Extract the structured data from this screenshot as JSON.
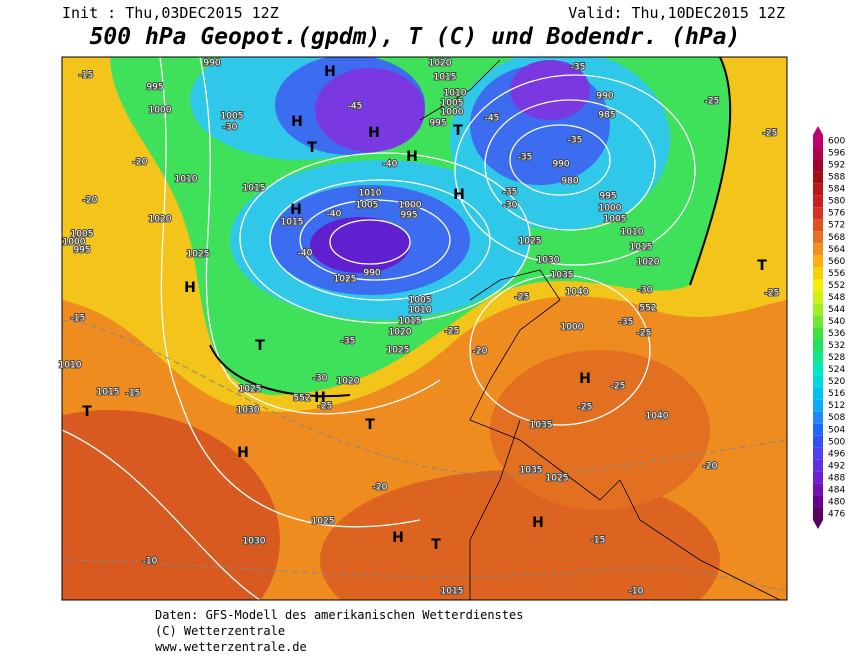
{
  "header": {
    "init": "Init : Thu,03DEC2015 12Z",
    "valid": "Valid: Thu,10DEC2015 12Z",
    "title": "500 hPa Geopot.(gpdm), T (C) und Bodendr. (hPa)"
  },
  "colorbar": {
    "levels": [
      476,
      480,
      484,
      488,
      492,
      496,
      500,
      504,
      508,
      512,
      516,
      520,
      524,
      528,
      532,
      536,
      540,
      544,
      548,
      552,
      556,
      560,
      564,
      568,
      572,
      576,
      580,
      584,
      588,
      592,
      596,
      600
    ],
    "colors": [
      "#5a0060",
      "#6a0090",
      "#7010b0",
      "#7020d0",
      "#6030e0",
      "#5040f0",
      "#3050f8",
      "#2068ff",
      "#2088ff",
      "#10a8ff",
      "#00c0f0",
      "#00d8e0",
      "#00e8c0",
      "#10e890",
      "#20e060",
      "#40e040",
      "#70e830",
      "#a0f020",
      "#d0f010",
      "#f8f000",
      "#f8d000",
      "#f8b010",
      "#f09020",
      "#e87020",
      "#e05020",
      "#d83020",
      "#c82020",
      "#b81818",
      "#a01010",
      "#a00030",
      "#b00050",
      "#c00070"
    ]
  },
  "map": {
    "labels": [
      "990",
      "995",
      "1000",
      "1005",
      "1010",
      "1015",
      "1020",
      "1025",
      "1015",
      "1010",
      "1005",
      "1000",
      "995",
      "990",
      "1025",
      "1020",
      "1015",
      "1010",
      "1005",
      "1000",
      "995",
      "990",
      "985",
      "980",
      "990",
      "995",
      "1000",
      "1005",
      "1010",
      "1015",
      "1020",
      "1025",
      "1030",
      "1035",
      "1040",
      "1000",
      "1005",
      "1010",
      "1015",
      "1020",
      "1025",
      "1020",
      "1025",
      "1030",
      "1040",
      "1035",
      "1035",
      "1025",
      "1025",
      "1030",
      "1015",
      "1015",
      "1010",
      "1005",
      "1000",
      "995",
      "-15",
      "-45",
      "-30",
      "-40",
      "-40",
      "-40",
      "-35",
      "-30",
      "-25",
      "-20",
      "-25",
      "-25",
      "-20",
      "-15",
      "-10",
      "-10",
      "-15",
      "-15",
      "-20",
      "-20",
      "-25",
      "-25",
      "-35",
      "-35",
      "-30",
      "-25",
      "-35",
      "-25",
      "-25",
      "-20",
      "-35",
      "-35",
      "-30",
      "-25",
      "-45",
      "552",
      "552"
    ],
    "markers": [
      "H",
      "H",
      "H",
      "H",
      "H",
      "H",
      "H",
      "H",
      "H",
      "H",
      "H",
      "H",
      "T",
      "T",
      "T",
      "T",
      "T",
      "T",
      "T"
    ]
  },
  "footer": [
    "Daten: GFS-Modell des amerikanischen Wetterdienstes",
    "(C) Wetterzentrale",
    "www.wetterzentrale.de"
  ]
}
